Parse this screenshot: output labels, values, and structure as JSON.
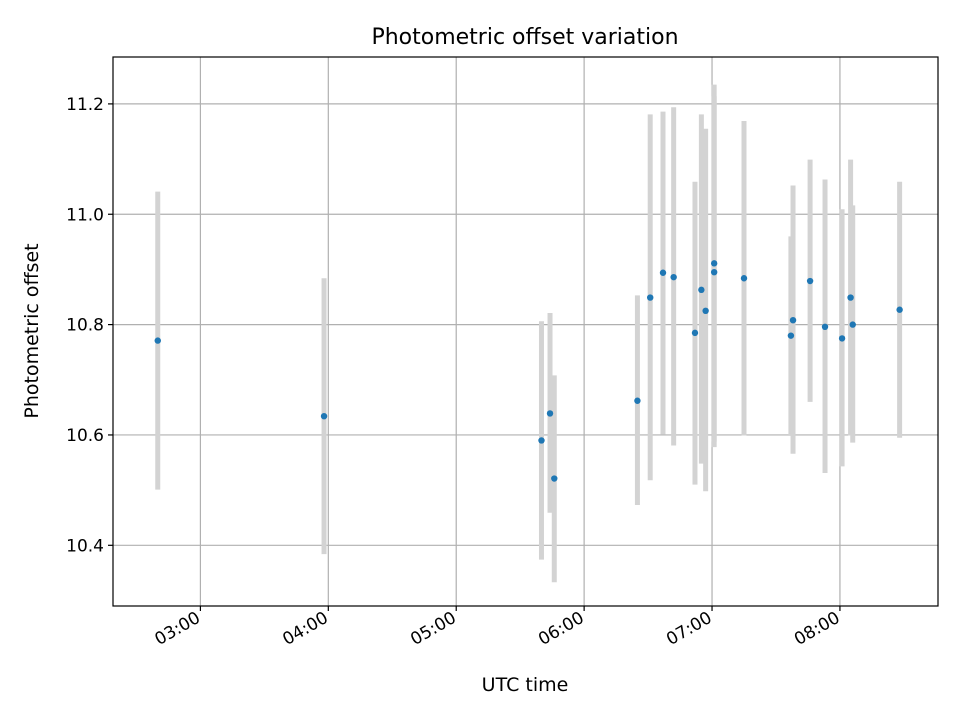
{
  "chart_data": {
    "type": "scatter",
    "title": "Photometric offset variation",
    "xlabel": "UTC time",
    "ylabel": "Photometric offset",
    "x_tick_labels": [
      "03:00",
      "04:00",
      "05:00",
      "06:00",
      "07:00",
      "08:00"
    ],
    "y_tick_labels": [
      "10.4",
      "10.6",
      "10.8",
      "11.0",
      "11.2"
    ],
    "xlim": [
      "02:19",
      "08:46"
    ],
    "ylim": [
      10.29,
      11.285
    ],
    "grid": true,
    "marker_color": "#1f77b4",
    "errorbar_color": "#d3d3d3",
    "points": [
      {
        "t": "02:40",
        "y": 10.771,
        "ylo": 10.501,
        "yhi": 11.041
      },
      {
        "t": "03:58",
        "y": 10.634,
        "ylo": 10.384,
        "yhi": 10.884
      },
      {
        "t": "05:40",
        "y": 10.59,
        "ylo": 10.374,
        "yhi": 10.806
      },
      {
        "t": "05:44",
        "y": 10.639,
        "ylo": 10.459,
        "yhi": 10.821
      },
      {
        "t": "05:46",
        "y": 10.521,
        "ylo": 10.333,
        "yhi": 10.708
      },
      {
        "t": "06:25",
        "y": 10.662,
        "ylo": 10.473,
        "yhi": 10.853
      },
      {
        "t": "06:31",
        "y": 10.849,
        "ylo": 10.518,
        "yhi": 11.181
      },
      {
        "t": "06:37",
        "y": 10.894,
        "ylo": 10.601,
        "yhi": 11.186
      },
      {
        "t": "06:42",
        "y": 10.886,
        "ylo": 10.581,
        "yhi": 11.194
      },
      {
        "t": "06:52",
        "y": 10.785,
        "ylo": 10.51,
        "yhi": 11.059
      },
      {
        "t": "06:55",
        "y": 10.863,
        "ylo": 10.548,
        "yhi": 11.181
      },
      {
        "t": "06:57",
        "y": 10.825,
        "ylo": 10.498,
        "yhi": 11.155
      },
      {
        "t": "07:01",
        "y": 10.895,
        "ylo": 10.578,
        "yhi": 11.214
      },
      {
        "t": "07:01",
        "y": 10.911,
        "ylo": 10.588,
        "yhi": 11.235
      },
      {
        "t": "07:15",
        "y": 10.884,
        "ylo": 10.599,
        "yhi": 11.169
      },
      {
        "t": "07:37",
        "y": 10.78,
        "ylo": 10.6,
        "yhi": 10.96
      },
      {
        "t": "07:38",
        "y": 10.808,
        "ylo": 10.566,
        "yhi": 11.052
      },
      {
        "t": "07:46",
        "y": 10.879,
        "ylo": 10.66,
        "yhi": 11.099
      },
      {
        "t": "07:53",
        "y": 10.796,
        "ylo": 10.531,
        "yhi": 11.063
      },
      {
        "t": "08:01",
        "y": 10.775,
        "ylo": 10.543,
        "yhi": 11.009
      },
      {
        "t": "08:05",
        "y": 10.849,
        "ylo": 10.599,
        "yhi": 11.099
      },
      {
        "t": "08:06",
        "y": 10.8,
        "ylo": 10.586,
        "yhi": 11.016
      },
      {
        "t": "08:28",
        "y": 10.827,
        "ylo": 10.595,
        "yhi": 11.059
      }
    ]
  }
}
